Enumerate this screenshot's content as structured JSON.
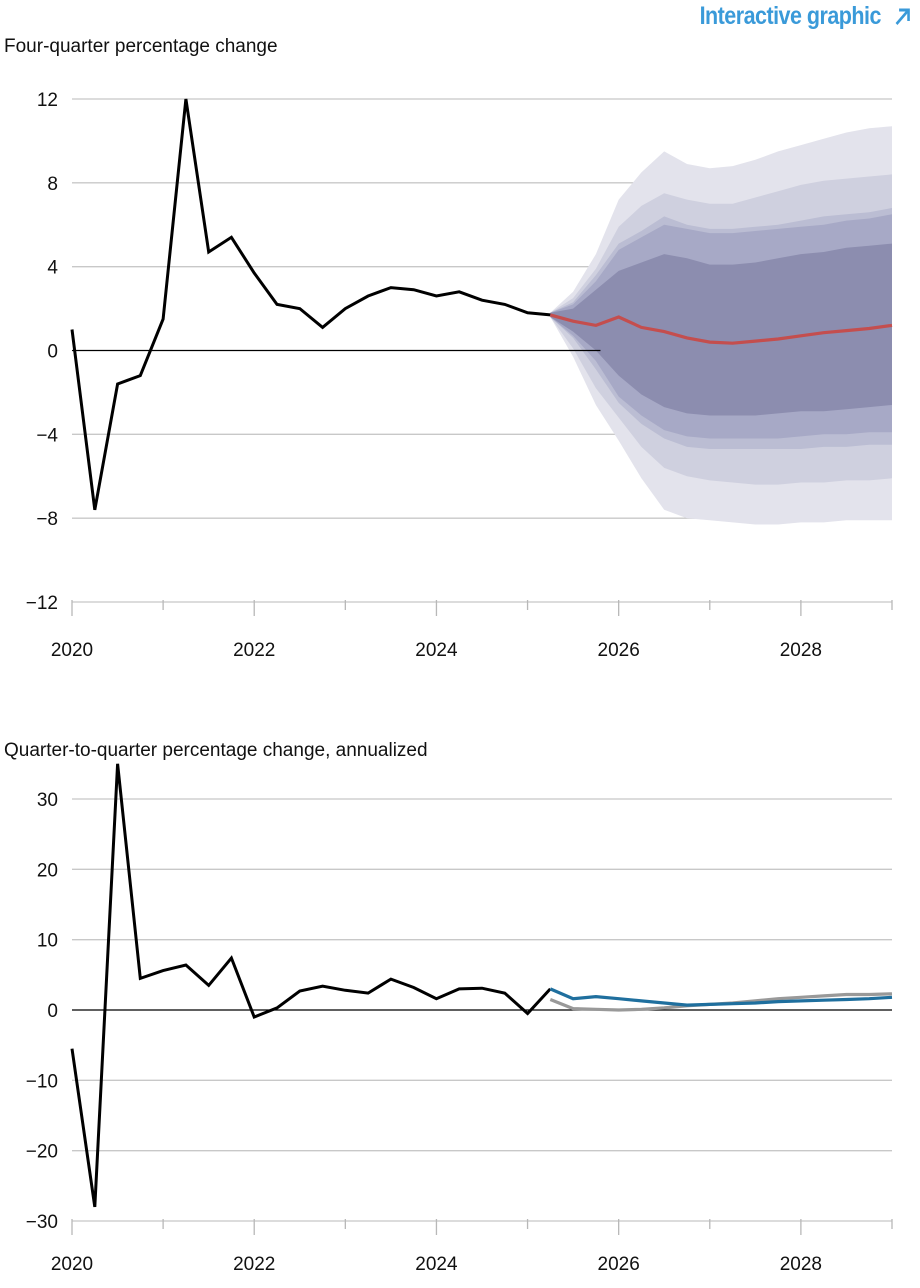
{
  "header": {
    "link_label": "Interactive graphic",
    "link_icon": "arrow-up-right-icon",
    "link_color": "#3a9ad9"
  },
  "chart_data": [
    {
      "type": "area",
      "ylabel": "Four-quarter percentage change",
      "ylim": [
        -12,
        12
      ],
      "yticks": [
        12,
        8,
        4,
        0,
        -4,
        -8,
        -12
      ],
      "ytick_labels": [
        "12",
        "8",
        "4",
        "0",
        "−4",
        "−8",
        "−12"
      ],
      "xlim": [
        2020.0,
        2029.0
      ],
      "xticks": [
        2020,
        2022,
        2024,
        2026,
        2028
      ],
      "xtick_labels": [
        "2020",
        "2022",
        "2024",
        "2026",
        "2028"
      ],
      "grid": true,
      "colors": {
        "history": "#000000",
        "forecast": "#c44e4e",
        "fan": [
          "#e3e3ec",
          "#cfd0df",
          "#bbbdd3",
          "#a7a9c6",
          "#8c8daf"
        ]
      },
      "series": [
        {
          "role": "history",
          "x": [
            2020.0,
            2020.25,
            2020.5,
            2020.75,
            2021.0,
            2021.25,
            2021.5,
            2021.75,
            2022.0,
            2022.25,
            2022.5,
            2022.75,
            2023.0,
            2023.25,
            2023.5,
            2023.75,
            2024.0,
            2024.25,
            2024.5,
            2024.75,
            2025.0,
            2025.25
          ],
          "y": [
            1.0,
            -7.6,
            -1.6,
            -1.2,
            1.5,
            12.0,
            4.7,
            5.4,
            3.7,
            2.2,
            2.0,
            1.1,
            2.0,
            2.6,
            3.0,
            2.9,
            2.6,
            2.8,
            2.4,
            2.2,
            1.8,
            1.7
          ]
        },
        {
          "role": "forecast",
          "x": [
            2025.25,
            2025.5,
            2025.75,
            2026.0,
            2026.25,
            2026.5,
            2026.75,
            2027.0,
            2027.25,
            2027.5,
            2027.75,
            2028.0,
            2028.25,
            2028.5,
            2028.75,
            2029.0
          ],
          "y": [
            1.7,
            1.4,
            1.2,
            1.6,
            1.1,
            0.9,
            0.6,
            0.4,
            0.35,
            0.45,
            0.55,
            0.7,
            0.85,
            0.95,
            1.05,
            1.2
          ]
        }
      ],
      "fan_chart": {
        "x": [
          2025.25,
          2025.5,
          2025.75,
          2026.0,
          2026.25,
          2026.5,
          2026.75,
          2027.0,
          2027.25,
          2027.5,
          2027.75,
          2028.0,
          2028.25,
          2028.5,
          2028.75,
          2029.0
        ],
        "bands": [
          {
            "upper": [
              1.8,
              2.8,
              4.6,
              7.2,
              8.5,
              9.5,
              8.9,
              8.7,
              8.8,
              9.1,
              9.5,
              9.8,
              10.1,
              10.4,
              10.6,
              10.7
            ],
            "lower": [
              1.6,
              -0.3,
              -2.6,
              -4.3,
              -6.1,
              -7.6,
              -8.0,
              -8.1,
              -8.2,
              -8.3,
              -8.3,
              -8.2,
              -8.2,
              -8.1,
              -8.1,
              -8.1
            ]
          },
          {
            "upper": [
              1.8,
              2.5,
              3.9,
              5.9,
              6.9,
              7.5,
              7.2,
              7.0,
              7.0,
              7.3,
              7.6,
              7.9,
              8.1,
              8.2,
              8.3,
              8.4
            ],
            "lower": [
              1.6,
              0.1,
              -1.8,
              -3.2,
              -4.6,
              -5.6,
              -6.0,
              -6.2,
              -6.3,
              -6.4,
              -6.4,
              -6.3,
              -6.3,
              -6.2,
              -6.2,
              -6.1
            ]
          },
          {
            "upper": [
              1.8,
              2.3,
              3.6,
              5.1,
              5.7,
              6.4,
              6.0,
              5.8,
              5.8,
              5.9,
              6.0,
              6.2,
              6.4,
              6.5,
              6.6,
              6.8
            ],
            "lower": [
              1.6,
              0.6,
              -0.9,
              -2.5,
              -3.5,
              -4.2,
              -4.6,
              -4.7,
              -4.7,
              -4.7,
              -4.7,
              -4.7,
              -4.6,
              -4.6,
              -4.5,
              -4.5
            ]
          },
          {
            "upper": [
              1.8,
              2.2,
              3.3,
              4.8,
              5.4,
              6.0,
              5.8,
              5.6,
              5.6,
              5.7,
              5.8,
              5.9,
              6.0,
              6.2,
              6.3,
              6.5
            ],
            "lower": [
              1.6,
              0.7,
              -0.5,
              -2.2,
              -3.1,
              -3.8,
              -4.1,
              -4.2,
              -4.2,
              -4.2,
              -4.2,
              -4.1,
              -4.0,
              -4.0,
              -3.9,
              -3.9
            ]
          },
          {
            "upper": [
              1.8,
              2.0,
              2.9,
              3.8,
              4.2,
              4.6,
              4.4,
              4.1,
              4.1,
              4.2,
              4.4,
              4.6,
              4.7,
              4.9,
              5.0,
              5.1
            ],
            "lower": [
              1.6,
              0.9,
              0.0,
              -1.2,
              -2.1,
              -2.7,
              -3.0,
              -3.1,
              -3.1,
              -3.1,
              -3.0,
              -2.9,
              -2.9,
              -2.8,
              -2.7,
              -2.6
            ]
          }
        ]
      }
    },
    {
      "type": "line",
      "ylabel": "Quarter-to-quarter percentage change, annualized",
      "ylim": [
        -30,
        30
      ],
      "yticks": [
        30,
        20,
        10,
        0,
        -10,
        -20,
        -30
      ],
      "ytick_labels": [
        "30",
        "20",
        "10",
        "0",
        "−10",
        "−20",
        "−30"
      ],
      "xlim": [
        2020.0,
        2029.0
      ],
      "xticks": [
        2020,
        2022,
        2024,
        2026,
        2028
      ],
      "xtick_labels": [
        "2020",
        "2022",
        "2024",
        "2026",
        "2028"
      ],
      "grid": true,
      "colors": {
        "history": "#000000",
        "forecast": "#1f6f9e",
        "alt": "#999999"
      },
      "series": [
        {
          "role": "history",
          "x": [
            2020.0,
            2020.25,
            2020.5,
            2020.75,
            2021.0,
            2021.25,
            2021.5,
            2021.75,
            2022.0,
            2022.25,
            2022.5,
            2022.75,
            2023.0,
            2023.25,
            2023.5,
            2023.75,
            2024.0,
            2024.25,
            2024.5,
            2024.75,
            2025.0,
            2025.25
          ],
          "y": [
            -5.5,
            -28.0,
            35.0,
            4.5,
            5.6,
            6.4,
            3.5,
            7.4,
            -1.0,
            0.3,
            2.7,
            3.4,
            2.8,
            2.4,
            4.4,
            3.2,
            1.6,
            3.0,
            3.1,
            2.4,
            -0.5,
            3.0
          ]
        },
        {
          "role": "alt",
          "x": [
            2025.25,
            2025.5,
            2025.75,
            2026.0,
            2026.25,
            2026.5,
            2026.75,
            2027.0,
            2027.25,
            2027.5,
            2027.75,
            2028.0,
            2028.25,
            2028.5,
            2028.75,
            2029.0
          ],
          "y": [
            1.5,
            0.2,
            0.1,
            0.0,
            0.1,
            0.3,
            0.6,
            0.8,
            1.0,
            1.3,
            1.6,
            1.8,
            2.0,
            2.2,
            2.2,
            2.3
          ]
        },
        {
          "role": "forecast",
          "x": [
            2025.25,
            2025.5,
            2025.75,
            2026.0,
            2026.25,
            2026.5,
            2026.75,
            2027.0,
            2027.25,
            2027.5,
            2027.75,
            2028.0,
            2028.25,
            2028.5,
            2028.75,
            2029.0
          ],
          "y": [
            3.0,
            1.6,
            1.9,
            1.6,
            1.3,
            1.0,
            0.7,
            0.8,
            0.9,
            1.0,
            1.2,
            1.3,
            1.4,
            1.5,
            1.6,
            1.8
          ]
        }
      ]
    }
  ]
}
